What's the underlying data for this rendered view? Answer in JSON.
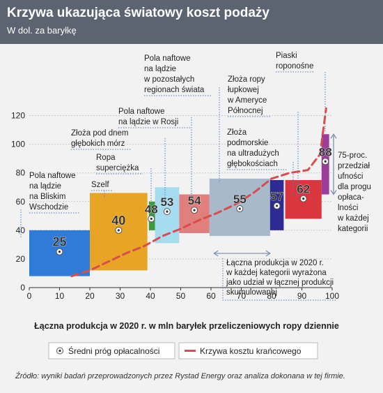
{
  "title": "Krzywa ukazująca światowy koszt podaży",
  "subtitle": "W dol. za baryłkę",
  "source": "Źródło: wyniki badań przeprowadzonych przez Rystad Energy oraz analiza dokonana w tej firmie.",
  "legend": {
    "dot_label": "Średni próg opłacalności",
    "line_label": "Krzywa kosztu krańcowego"
  },
  "colors": {
    "header": "#5b6470",
    "curve": "#d94d4d"
  },
  "chart_data": {
    "type": "bar",
    "xlabel": "Łączna produkcja w 2020 r. w mln baryłek przeliczeniowych ropy dziennie",
    "ylabel": "",
    "xlim": [
      0,
      100
    ],
    "ylim": [
      0,
      130
    ],
    "x_ticks": [
      0,
      10,
      20,
      30,
      40,
      50,
      60,
      70,
      80,
      90,
      100
    ],
    "y_ticks": [
      0,
      20,
      40,
      60,
      80,
      100,
      120
    ],
    "grid": true,
    "categories": [
      "Pola naftowe na lądzie na Bliskim Wschodzie",
      "Szelf",
      "Złoża pod dnem głębokich mórz",
      "Ropa superciężka",
      "Pola naftowe na lądzie w Rosji",
      "Pola naftowe na lądzie w pozostałych regionach świata",
      "Złoża podmorskie na ultradużych głębokościach",
      "Złoża ropy łupkowej w Ameryce Północnej",
      "Piaski roponośne"
    ],
    "series": [
      {
        "name": "Średni próg opłacalności",
        "values": [
          25,
          40,
          48,
          53,
          54,
          55,
          57,
          62,
          88
        ],
        "x_start": [
          0,
          20,
          39.5,
          41.5,
          49.5,
          59.5,
          79.5,
          84.5,
          96.5
        ],
        "x_end": [
          20,
          39,
          41.5,
          49.5,
          59.5,
          79.5,
          84,
          96.5,
          99
        ],
        "low": [
          8,
          12,
          40,
          31,
          38,
          36,
          40,
          48,
          65
        ],
        "high": [
          40,
          66,
          60,
          70,
          65,
          76,
          75,
          75,
          107
        ],
        "colors": [
          "#2f7bd8",
          "#e8a425",
          "#3f9a3f",
          "#a6dcef",
          "#e07f7c",
          "#a7b9cb",
          "#2d2b93",
          "#d9363e",
          "#9b3d9b"
        ]
      },
      {
        "name": "Krzywa kosztu krańcowego",
        "x": [
          14,
          20,
          26,
          32,
          38,
          44,
          50,
          56,
          62,
          68,
          74,
          80,
          86,
          92,
          96,
          98
        ],
        "values": [
          8,
          12,
          18,
          24,
          29,
          36,
          41,
          47,
          52,
          58,
          66,
          76,
          80,
          82,
          93,
          125
        ]
      }
    ],
    "annotation": "Łączna produkcja w 2020 r. w każdej kategorii wyrażona jako udział w łącznej produkcji skumulowanej",
    "bracket_note": "75-proc. przedział ufności dla progu opłacalności w każdej kategorii",
    "label_lines": [
      [
        "Pola naftowe",
        "na lądzie",
        "na Bliskim",
        "Wschodzie"
      ],
      [
        "Szelf"
      ],
      [
        "Złoża pod dnem",
        "głębokich mórz"
      ],
      [
        "Ropa",
        "superciężka"
      ],
      [
        "Pola naftowe",
        "na lądzie w Rosji"
      ],
      [
        "Pola naftowe",
        "na lądzie",
        "w pozostałych",
        "regionach świata"
      ],
      [
        "Złoża",
        "podmorskie",
        "na ultradużych",
        "głębokościach"
      ],
      [
        "Złoża ropy",
        "łupkowej",
        "w Ameryce",
        "Północnej"
      ],
      [
        "Piaski",
        "roponośne"
      ]
    ],
    "annotation_lines": [
      "Łączna produkcja w 2020 r.",
      "w każdej kategorii wyrażona",
      "jako udział w łącznej produkcji",
      "skumulowanej"
    ],
    "bracket_lines": [
      "75-proc.",
      "przedział",
      "ufności",
      "dla progu",
      "opłaca-",
      "lności",
      "w każdej",
      "kategorii"
    ]
  }
}
